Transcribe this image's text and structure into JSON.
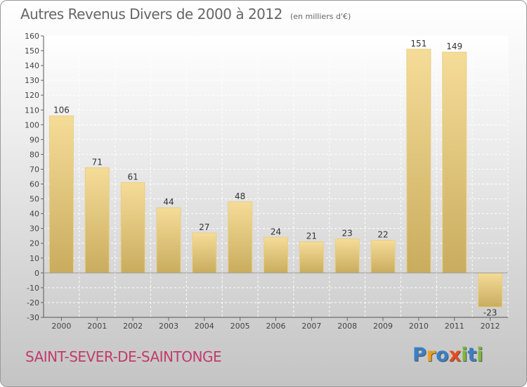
{
  "title": "Autres Revenus Divers de 2000 à 2012",
  "subtitle": "(en milliers d'€)",
  "commune": "SAINT-SEVER-DE-SAINTONGE",
  "logo": {
    "text": "Proxiti",
    "letters": [
      {
        "ch": "P",
        "color": "#3a7fc6"
      },
      {
        "ch": "r",
        "color": "#e8a020"
      },
      {
        "ch": "o",
        "color": "#3a7fc6"
      },
      {
        "ch": "x",
        "color": "#e84a1c"
      },
      {
        "ch": "i",
        "color": "#7cb83a"
      },
      {
        "ch": "t",
        "color": "#3a7fc6"
      },
      {
        "ch": "i",
        "color": "#7cb83a"
      }
    ]
  },
  "colors": {
    "bar_light": "#f5dc98",
    "bar_dark": "#c9ac5e",
    "commune": "#c23b6b"
  },
  "chart_data": {
    "type": "bar",
    "categories": [
      "2000",
      "2001",
      "2002",
      "2003",
      "2004",
      "2005",
      "2006",
      "2007",
      "2008",
      "2009",
      "2010",
      "2011",
      "2012"
    ],
    "values": [
      106,
      71,
      61,
      44,
      27,
      48,
      24,
      21,
      23,
      22,
      151,
      149,
      -23
    ],
    "data_labels": [
      "106",
      "71",
      "61",
      "44",
      "27",
      "48",
      "24",
      "21",
      "23",
      "22",
      "151",
      "149",
      "-23"
    ],
    "ylim": [
      -30,
      160
    ],
    "yticks": [
      -30,
      -20,
      -10,
      0,
      10,
      20,
      30,
      40,
      50,
      60,
      70,
      80,
      90,
      100,
      110,
      120,
      130,
      140,
      150,
      160
    ],
    "grid": true,
    "xlabel": "",
    "ylabel": ""
  }
}
